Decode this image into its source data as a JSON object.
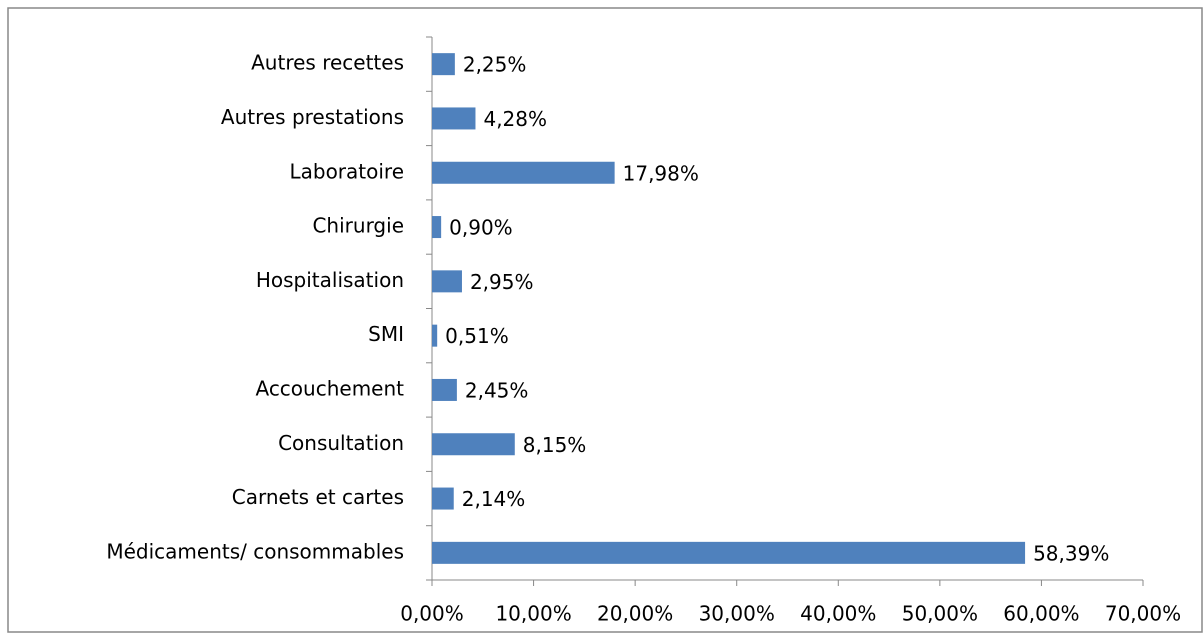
{
  "chart_data": {
    "type": "bar",
    "orientation": "horizontal",
    "categories": [
      "Médicaments/ consommables",
      "Carnets et cartes",
      "Consultation",
      "Accouchement",
      "SMI",
      "Hospitalisation",
      "Chirurgie",
      "Laboratoire",
      "Autres prestations",
      "Autres recettes"
    ],
    "values": [
      58.39,
      2.14,
      8.15,
      2.45,
      0.51,
      2.95,
      0.9,
      17.98,
      4.28,
      2.25
    ],
    "value_labels": [
      "58,39%",
      "2,14%",
      "8,15%",
      "2,45%",
      "0,51%",
      "2,95%",
      "0,90%",
      "17,98%",
      "4,28%",
      "2,25%"
    ],
    "color": "#4f81bd",
    "xlim": [
      0,
      70
    ],
    "xticks": [
      {
        "value": 0,
        "label": "0,00%"
      },
      {
        "value": 10,
        "label": "10,00%"
      },
      {
        "value": 20,
        "label": "20,00%"
      },
      {
        "value": 30,
        "label": "30,00%"
      },
      {
        "value": 40,
        "label": "40,00%"
      },
      {
        "value": 50,
        "label": "50,00%"
      },
      {
        "value": 60,
        "label": "60,00%"
      },
      {
        "value": 70,
        "label": "70,00%"
      }
    ],
    "grid": false
  }
}
